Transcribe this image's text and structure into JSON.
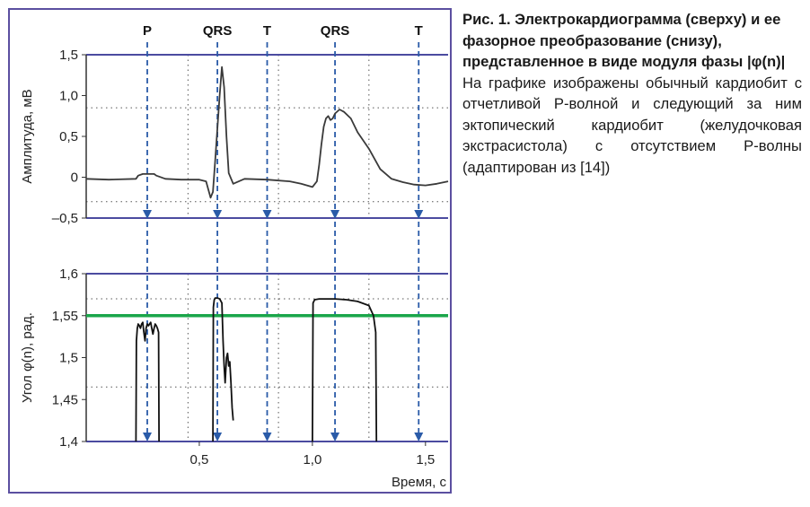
{
  "caption": {
    "title": "Рис. 1. Электрокардиограмма (сверху) и ее фазорное преобразование (снизу), представленное в виде модуля фазы |φ(n)|",
    "body": "На графике изображены обычный кардиобит с отчетливой Р-волной и следующий за ним эктопический кардиобит (желудочковая экстрасистола) с отсутствием Р-волны (адаптирован из [14])"
  },
  "chart_data": [
    {
      "type": "line",
      "ylabel": "Амплитуда, мВ",
      "ylim": [
        -0.5,
        1.5
      ],
      "yticks": [
        "1,5",
        "1,0",
        "0,5",
        "0",
        "–0,5"
      ],
      "ytick_values": [
        1.5,
        1.0,
        0.5,
        0,
        -0.5
      ],
      "xlim": [
        0,
        1.6
      ],
      "wave_labels": [
        {
          "text": "P",
          "x": 0.27
        },
        {
          "text": "QRS",
          "x": 0.58
        },
        {
          "text": "T",
          "x": 0.8
        },
        {
          "text": "QRS",
          "x": 1.1
        },
        {
          "text": "T",
          "x": 1.47
        }
      ],
      "series": [
        {
          "color": "#3a3a3a",
          "x": [
            0.0,
            0.1,
            0.22,
            0.23,
            0.25,
            0.3,
            0.31,
            0.35,
            0.42,
            0.5,
            0.53,
            0.54,
            0.55,
            0.56,
            0.57,
            0.58,
            0.59,
            0.6,
            0.61,
            0.62,
            0.63,
            0.65,
            0.7,
            0.8,
            0.9,
            0.95,
            1.0,
            1.02,
            1.03,
            1.04,
            1.05,
            1.06,
            1.07,
            1.08,
            1.09,
            1.1,
            1.12,
            1.14,
            1.17,
            1.2,
            1.25,
            1.3,
            1.35,
            1.4,
            1.45,
            1.5,
            1.55,
            1.6
          ],
          "y": [
            -0.02,
            -0.03,
            -0.02,
            0.02,
            0.04,
            0.04,
            0.02,
            -0.02,
            -0.03,
            -0.03,
            -0.05,
            -0.15,
            -0.25,
            -0.18,
            0.2,
            0.6,
            1.0,
            1.35,
            1.1,
            0.5,
            0.05,
            -0.08,
            -0.02,
            -0.03,
            -0.05,
            -0.08,
            -0.12,
            -0.05,
            0.15,
            0.4,
            0.62,
            0.72,
            0.75,
            0.7,
            0.72,
            0.78,
            0.83,
            0.8,
            0.72,
            0.55,
            0.35,
            0.1,
            -0.02,
            -0.06,
            -0.09,
            -0.1,
            -0.08,
            -0.05
          ]
        }
      ]
    },
    {
      "type": "line",
      "ylabel": "Угол φ(n), рад.",
      "ylim": [
        1.4,
        1.6
      ],
      "yticks": [
        "1,6",
        "1,55",
        "1,5",
        "1,45",
        "1,4"
      ],
      "ytick_values": [
        1.6,
        1.55,
        1.5,
        1.45,
        1.4
      ],
      "xlim": [
        0,
        1.6
      ],
      "xticks": [
        "0,5",
        "1,0",
        "1,5"
      ],
      "xtick_values": [
        0.5,
        1.0,
        1.5
      ],
      "xlabel": "Время, с",
      "threshold": {
        "value": 1.55,
        "color": "#1aa64a"
      },
      "series": [
        {
          "color": "#111111",
          "x": [
            0.22,
            0.222,
            0.226,
            0.23,
            0.235,
            0.24,
            0.245,
            0.25,
            0.255,
            0.26,
            0.265,
            0.27,
            0.275,
            0.28,
            0.285,
            0.29,
            0.295,
            0.3,
            0.305,
            0.31,
            0.315,
            0.32,
            0.322
          ],
          "y": [
            1.4,
            1.52,
            1.535,
            1.54,
            1.538,
            1.535,
            1.54,
            1.542,
            1.53,
            1.52,
            1.535,
            1.54,
            1.538,
            1.54,
            1.542,
            1.535,
            1.528,
            1.535,
            1.54,
            1.538,
            1.535,
            1.53,
            1.4
          ]
        },
        {
          "color": "#111111",
          "x": [
            0.56,
            0.562,
            0.566,
            0.57,
            0.58,
            0.59,
            0.6,
            0.605,
            0.61,
            0.614,
            0.62,
            0.625,
            0.63,
            0.635,
            0.64,
            0.645,
            0.65
          ],
          "y": [
            1.4,
            1.56,
            1.569,
            1.571,
            1.571,
            1.57,
            1.565,
            1.52,
            1.49,
            1.47,
            1.5,
            1.505,
            1.49,
            1.495,
            1.47,
            1.44,
            1.425
          ]
        },
        {
          "color": "#111111",
          "x": [
            1.0,
            1.003,
            1.01,
            1.03,
            1.1,
            1.15,
            1.2,
            1.25,
            1.27,
            1.28,
            1.283
          ],
          "y": [
            1.4,
            1.565,
            1.569,
            1.57,
            1.57,
            1.569,
            1.567,
            1.562,
            1.55,
            1.53,
            1.4
          ]
        }
      ]
    }
  ],
  "guides": {
    "dashed_x": [
      0.27,
      0.58,
      0.8,
      1.1,
      1.47
    ],
    "dashed_color": "#2a5ba8",
    "dotted_x": [
      0.45,
      0.85,
      1.25
    ],
    "frame_color": "#4b4ba0"
  }
}
